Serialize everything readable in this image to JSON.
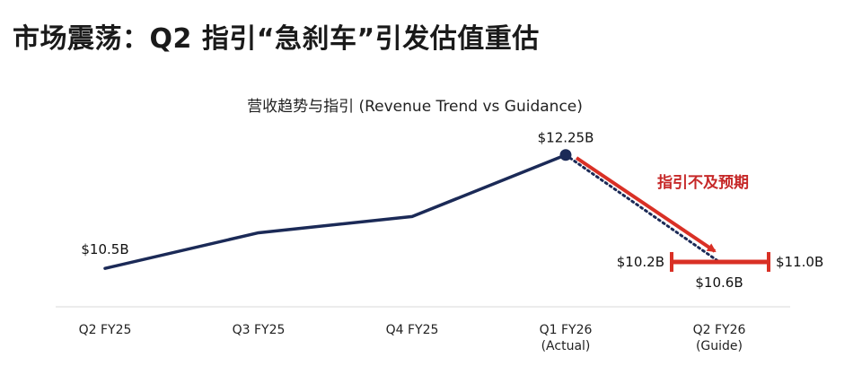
{
  "page": {
    "headline": "市场震荡：Q2 指引“急刹车”引发估值重估"
  },
  "chart_data": {
    "type": "line",
    "title": "营收趋势与指引 (Revenue Trend vs Guidance)",
    "categories": [
      {
        "line1": "Q2 FY25",
        "line2": ""
      },
      {
        "line1": "Q3 FY25",
        "line2": ""
      },
      {
        "line1": "Q4 FY25",
        "line2": ""
      },
      {
        "line1": "Q1 FY26",
        "line2": "(Actual)"
      },
      {
        "line1": "Q2 FY26",
        "line2": "(Guide)"
      }
    ],
    "series": [
      {
        "style": "solid",
        "values": [
          10.5,
          11.05,
          11.3,
          12.25,
          null
        ]
      },
      {
        "style": "dotted",
        "values": [
          null,
          null,
          null,
          12.25,
          10.6
        ]
      }
    ],
    "guidance_range": {
      "low": 10.2,
      "high": 11.0,
      "mid": 10.6
    },
    "data_labels": {
      "first": "$10.5B",
      "peak": "$12.25B",
      "guide_low": "$10.2B",
      "guide_high": "$11.0B",
      "guide_mid": "$10.6B"
    },
    "annotation": "指引不及预期",
    "ylim": [
      9.7,
      12.8
    ],
    "grid": false,
    "colors": {
      "line": "#1b2a57",
      "guide": "#d93025",
      "annotation": "#c62828"
    }
  }
}
